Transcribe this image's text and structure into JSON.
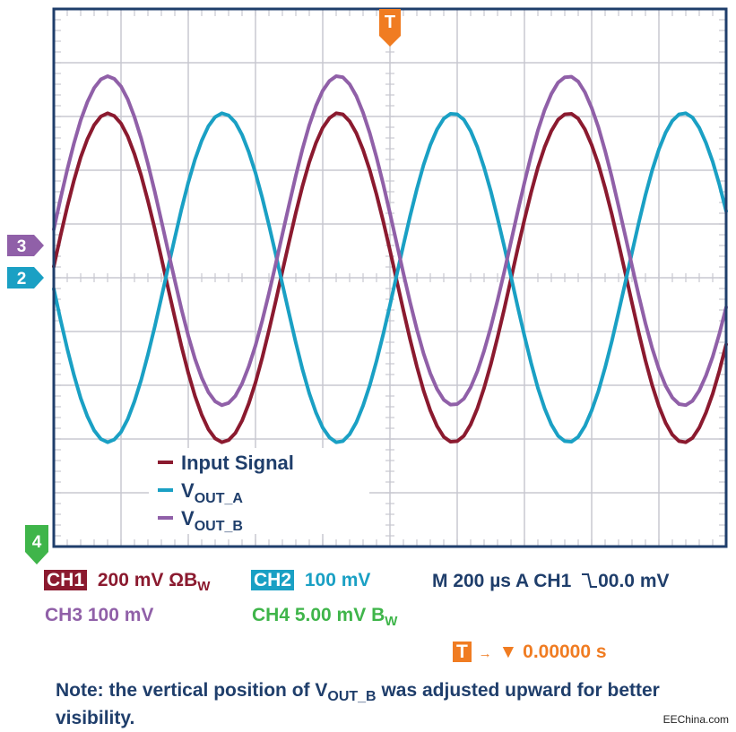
{
  "colors": {
    "input": "#8b1a2f",
    "vout_a": "#1aa0c4",
    "vout_b": "#9060a8",
    "ch4": "#3fb54a",
    "trigger": "#f07c22",
    "navy": "#1f3e6b",
    "grid": "#c8c8d0",
    "frame": "#1f3e6b"
  },
  "chart_data": {
    "type": "line",
    "x_divisions": 10,
    "y_divisions": 10,
    "grid": true,
    "x": [
      0,
      0.1,
      0.2,
      0.3,
      0.4,
      0.5,
      0.6,
      0.7,
      0.8,
      0.9,
      1,
      1.1,
      1.2,
      1.3,
      1.4,
      1.5,
      1.6,
      1.7,
      1.8,
      1.9,
      2,
      2.1,
      2.2,
      2.3,
      2.4,
      2.5,
      2.6,
      2.7,
      2.8,
      2.9,
      3,
      3.1,
      3.2,
      3.3,
      3.4,
      3.5,
      3.6,
      3.7,
      3.8,
      3.9,
      4,
      4.1,
      4.2,
      4.3,
      4.4,
      4.5,
      4.6,
      4.7,
      4.8,
      4.9,
      5,
      5.1,
      5.2,
      5.3,
      5.4,
      5.5,
      5.6,
      5.7,
      5.8,
      5.9,
      6,
      6.1,
      6.2,
      6.3,
      6.4,
      6.5,
      6.6,
      6.7,
      6.8,
      6.9,
      7,
      7.1,
      7.2,
      7.3,
      7.4,
      7.5,
      7.6,
      7.7,
      7.8,
      7.9,
      8,
      8.1,
      8.2,
      8.3,
      8.4,
      8.5,
      8.6,
      8.7,
      8.8,
      8.9,
      9,
      9.1,
      9.2,
      9.3,
      9.4,
      9.5,
      9.6,
      9.7,
      9.8,
      9.9,
      10
    ],
    "series": [
      {
        "name": "Input Signal",
        "color": "#8b1a2f",
        "values": [
          0.21,
          0.78,
          1.32,
          1.81,
          2.24,
          2.58,
          2.84,
          3.0,
          3.06,
          3.01,
          2.87,
          2.63,
          2.3,
          1.9,
          1.43,
          0.92,
          0.37,
          -0.19,
          -0.74,
          -1.28,
          -1.77,
          -2.2,
          -2.55,
          -2.82,
          -2.99,
          -3.06,
          -3.02,
          -2.89,
          -2.66,
          -2.34,
          -1.95,
          -1.49,
          -0.98,
          -0.44,
          0.12,
          0.67,
          1.21,
          1.71,
          2.15,
          2.51,
          2.79,
          2.97,
          3.06,
          3.04,
          2.91,
          2.69,
          2.38,
          2.0,
          1.55,
          1.05,
          0.51,
          -0.05,
          -0.61,
          -1.15,
          -1.65,
          -2.1,
          -2.47,
          -2.76,
          -2.96,
          -3.05,
          -3.04,
          -2.94,
          -2.73,
          -2.43,
          -2.05,
          -1.61,
          -1.11,
          -0.58,
          -0.02,
          0.54,
          1.08,
          1.59,
          2.05,
          2.43,
          2.73,
          2.94,
          3.04,
          3.05,
          2.96,
          2.76,
          2.47,
          2.11,
          1.67,
          1.18,
          0.64,
          0.09,
          -0.47,
          -1.02,
          -1.54,
          -2.0,
          -2.39,
          -2.7,
          -2.92,
          -3.04,
          -3.06,
          -2.98,
          -2.79,
          -2.51,
          -2.16,
          -1.73,
          -1.24
        ],
        "note": "divisions from center"
      },
      {
        "name": "VOUT_A",
        "color": "#1aa0c4",
        "values": [
          -0.21,
          -0.78,
          -1.32,
          -1.81,
          -2.24,
          -2.58,
          -2.84,
          -3.0,
          -3.06,
          -3.01,
          -2.87,
          -2.63,
          -2.3,
          -1.9,
          -1.43,
          -0.92,
          -0.37,
          0.19,
          0.74,
          1.28,
          1.77,
          2.2,
          2.55,
          2.82,
          2.99,
          3.06,
          3.02,
          2.89,
          2.66,
          2.34,
          1.95,
          1.49,
          0.98,
          0.44,
          -0.12,
          -0.67,
          -1.21,
          -1.71,
          -2.15,
          -2.51,
          -2.79,
          -2.97,
          -3.06,
          -3.04,
          -2.91,
          -2.69,
          -2.38,
          -2.0,
          -1.55,
          -1.05,
          -0.51,
          0.05,
          0.61,
          1.15,
          1.65,
          2.1,
          2.47,
          2.76,
          2.96,
          3.05,
          3.04,
          2.94,
          2.73,
          2.43,
          2.05,
          1.61,
          1.11,
          0.58,
          0.02,
          -0.54,
          -1.08,
          -1.59,
          -2.05,
          -2.43,
          -2.73,
          -2.94,
          -3.04,
          -3.05,
          -2.96,
          -2.76,
          -2.47,
          -2.11,
          -1.67,
          -1.18,
          -0.64,
          -0.09,
          0.47,
          1.02,
          1.54,
          2.0,
          2.39,
          2.7,
          2.92,
          3.04,
          3.06,
          2.98,
          2.79,
          2.51,
          2.16,
          1.73,
          1.24
        ]
      },
      {
        "name": "VOUT_B",
        "color": "#9060a8",
        "values": [
          0.9,
          1.47,
          2.01,
          2.5,
          2.93,
          3.27,
          3.53,
          3.69,
          3.75,
          3.7,
          3.56,
          3.32,
          2.99,
          2.59,
          2.12,
          1.61,
          1.06,
          0.5,
          -0.05,
          -0.59,
          -1.08,
          -1.51,
          -1.86,
          -2.13,
          -2.3,
          -2.37,
          -2.33,
          -2.2,
          -1.97,
          -1.65,
          -1.26,
          -0.8,
          -0.29,
          0.25,
          0.81,
          1.36,
          1.9,
          2.4,
          2.84,
          3.2,
          3.48,
          3.66,
          3.75,
          3.73,
          3.6,
          3.38,
          3.07,
          2.69,
          2.24,
          1.74,
          1.2,
          0.64,
          0.08,
          -0.46,
          -0.96,
          -1.41,
          -1.78,
          -2.07,
          -2.27,
          -2.36,
          -2.35,
          -2.25,
          -2.04,
          -1.74,
          -1.36,
          -0.92,
          -0.42,
          0.11,
          0.67,
          1.23,
          1.77,
          2.28,
          2.74,
          3.12,
          3.42,
          3.63,
          3.73,
          3.74,
          3.65,
          3.45,
          3.16,
          2.8,
          2.36,
          1.87,
          1.33,
          0.78,
          0.22,
          -0.33,
          -0.85,
          -1.31,
          -1.7,
          -2.01,
          -2.23,
          -2.35,
          -2.37,
          -2.29,
          -2.1,
          -1.82,
          -1.47,
          -1.04,
          -0.55
        ]
      }
    ],
    "legend": {
      "placement": "bottom-left",
      "items": [
        {
          "label": "Input Signal",
          "color": "#8b1a2f",
          "sub": ""
        },
        {
          "label": "V",
          "color": "#1aa0c4",
          "sub": "OUT_A"
        },
        {
          "label": "V",
          "color": "#9060a8",
          "sub": "OUT_B"
        }
      ]
    },
    "markers": {
      "trigger": "T",
      "ch3": "3",
      "ch2": "2",
      "ch4": "4",
      "ch3_offset_div": 0.6,
      "ch2_offset_div": 0.0,
      "ch4_offset_div": -4.8
    }
  },
  "readouts": {
    "ch1_label": "CH1",
    "ch1_value": "200 mV ΩB",
    "ch1_sub": "W",
    "ch2_label": "CH2",
    "ch2_value": "100 mV",
    "time": "M 200 µs A  CH1",
    "trig_level": "00.0 mV",
    "ch3": "CH3  100 mV",
    "ch4_value": "CH4  5.00 mV B",
    "ch4_sub": "W",
    "t_label": "T",
    "t_arrow": "→",
    "t_value": "▼ 0.00000 s"
  },
  "note": {
    "text1": "Note: the vertical position of V",
    "sub": "OUT_B",
    "text2": " was adjusted upward for better visibility."
  },
  "credit": "EEChina.com"
}
